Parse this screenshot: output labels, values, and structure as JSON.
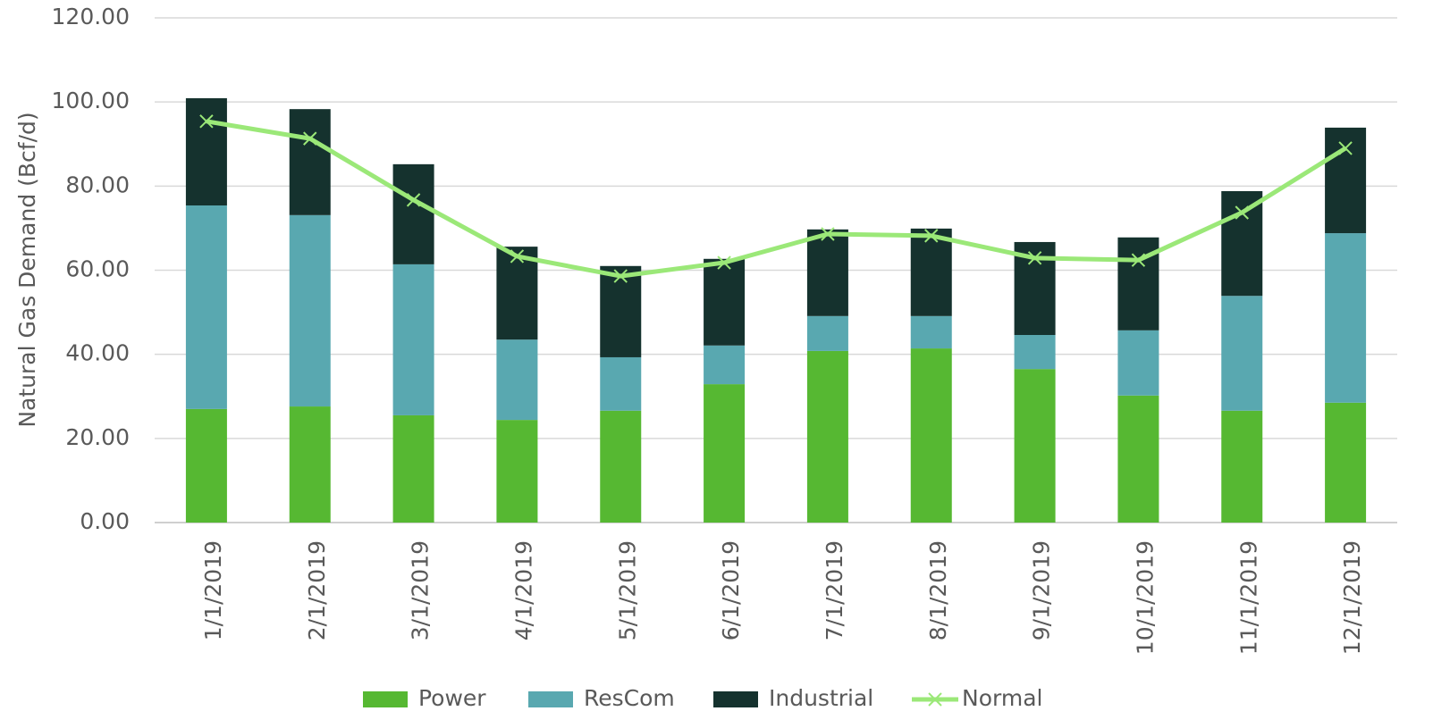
{
  "chart_data": {
    "type": "bar",
    "stacked": true,
    "y_label": "Natural Gas Demand (Bcf/d)",
    "categories": [
      "1/1/2019",
      "2/1/2019",
      "3/1/2019",
      "4/1/2019",
      "5/1/2019",
      "6/1/2019",
      "7/1/2019",
      "8/1/2019",
      "9/1/2019",
      "10/1/2019",
      "11/1/2019",
      "12/1/2019"
    ],
    "series": [
      {
        "name": "Power",
        "color": "#56b832",
        "values": [
          27.0,
          27.6,
          25.5,
          24.4,
          26.6,
          32.9,
          40.8,
          41.4,
          36.5,
          30.2,
          26.6,
          28.5
        ]
      },
      {
        "name": "ResCom",
        "color": "#59a8b0",
        "values": [
          48.4,
          45.5,
          35.9,
          19.1,
          12.7,
          9.2,
          8.3,
          7.7,
          8.1,
          15.5,
          27.3,
          40.3
        ]
      },
      {
        "name": "Industrial",
        "color": "#15322e",
        "values": [
          25.5,
          25.2,
          23.8,
          22.1,
          21.7,
          20.6,
          20.6,
          20.8,
          22.1,
          22.1,
          24.9,
          25.1
        ]
      },
      {
        "name": "Normal",
        "color": "#9be878",
        "type": "line",
        "values": [
          95.4,
          91.3,
          76.7,
          63.3,
          58.6,
          61.8,
          68.6,
          68.2,
          62.9,
          62.4,
          73.7,
          89.0
        ]
      }
    ],
    "ylim": [
      0,
      120
    ],
    "yticks": [
      {
        "value": 0,
        "label": "0.00"
      },
      {
        "value": 20,
        "label": "20.00"
      },
      {
        "value": 40,
        "label": "40.00"
      },
      {
        "value": 60,
        "label": "60.00"
      },
      {
        "value": 80,
        "label": "80.00"
      },
      {
        "value": 100,
        "label": "100.00"
      },
      {
        "value": 120,
        "label": "120.00"
      }
    ],
    "grid": true,
    "legend": "bottom"
  }
}
